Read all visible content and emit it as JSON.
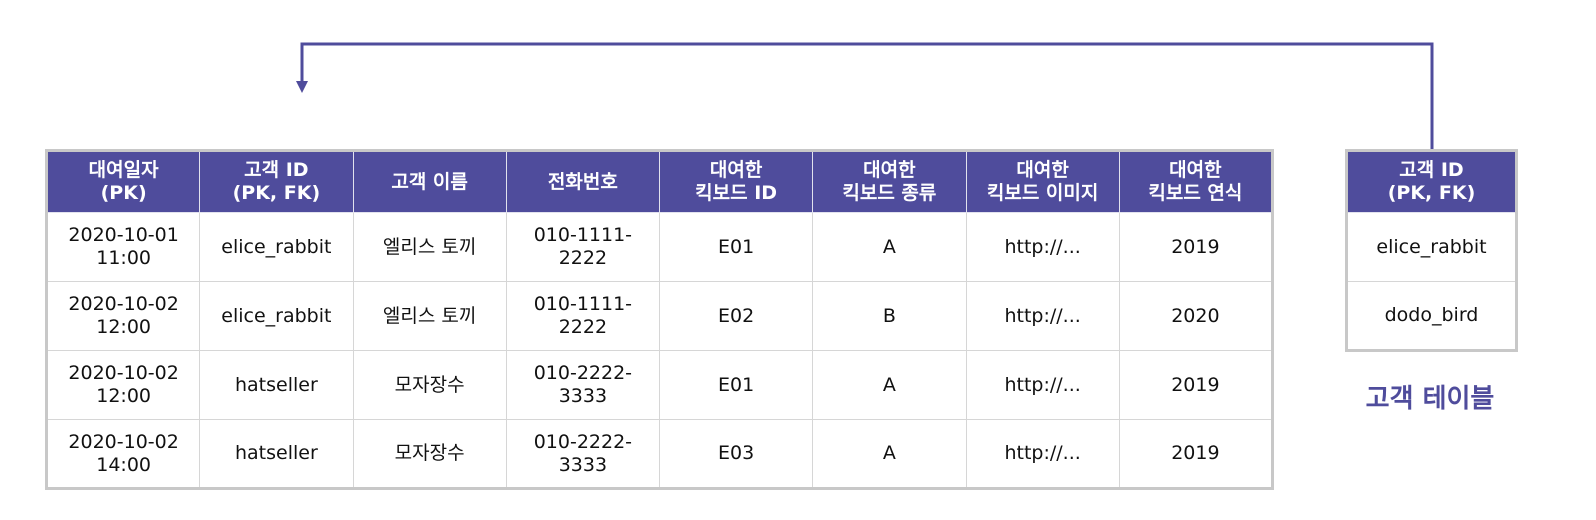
{
  "colors": {
    "header_bg": "#4f4c9c",
    "arrow": "#4f4c9c",
    "caption": "#4f4c9c",
    "border": "#c8c8c8"
  },
  "rental_table": {
    "headers": [
      "대여일자\n(PK)",
      "고객 ID\n(PK, FK)",
      "고객 이름",
      "전화번호",
      "대여한\n킥보드 ID",
      "대여한\n킥보드 종류",
      "대여한\n킥보드 이미지",
      "대여한\n킥보드 연식"
    ],
    "rows": [
      [
        "2020-10-01\n11:00",
        "elice_rabbit",
        "엘리스 토끼",
        "010-1111-\n2222",
        "E01",
        "A",
        "http://...",
        "2019"
      ],
      [
        "2020-10-02\n12:00",
        "elice_rabbit",
        "엘리스 토끼",
        "010-1111-\n2222",
        "E02",
        "B",
        "http://...",
        "2020"
      ],
      [
        "2020-10-02\n12:00",
        "hatseller",
        "모자장수",
        "010-2222-\n3333",
        "E01",
        "A",
        "http://...",
        "2019"
      ],
      [
        "2020-10-02\n14:00",
        "hatseller",
        "모자장수",
        "010-2222-\n3333",
        "E03",
        "A",
        "http://...",
        "2019"
      ]
    ]
  },
  "customer_table": {
    "header": "고객 ID\n(PK, FK)",
    "rows": [
      "elice_rabbit",
      "dodo_bird"
    ],
    "caption": "고객 테이블"
  }
}
